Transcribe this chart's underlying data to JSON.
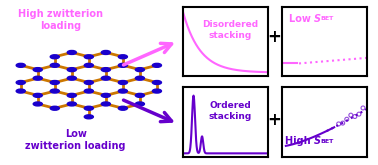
{
  "bg_color": "#ffffff",
  "high_color": "#ff66ff",
  "low_color": "#6600cc",
  "high_label": "High zwitterion\nloading",
  "low_label": "Low\nzwitterion loading",
  "disordered_title": "Disordered\nstacking",
  "ordered_title": "Ordered\nstacking",
  "low_sbet_title": "Low S",
  "high_sbet_title": "High S",
  "sbet_sub": "BET",
  "plus_symbol": "+",
  "fig_width": 3.78,
  "fig_height": 1.65,
  "dpi": 100
}
